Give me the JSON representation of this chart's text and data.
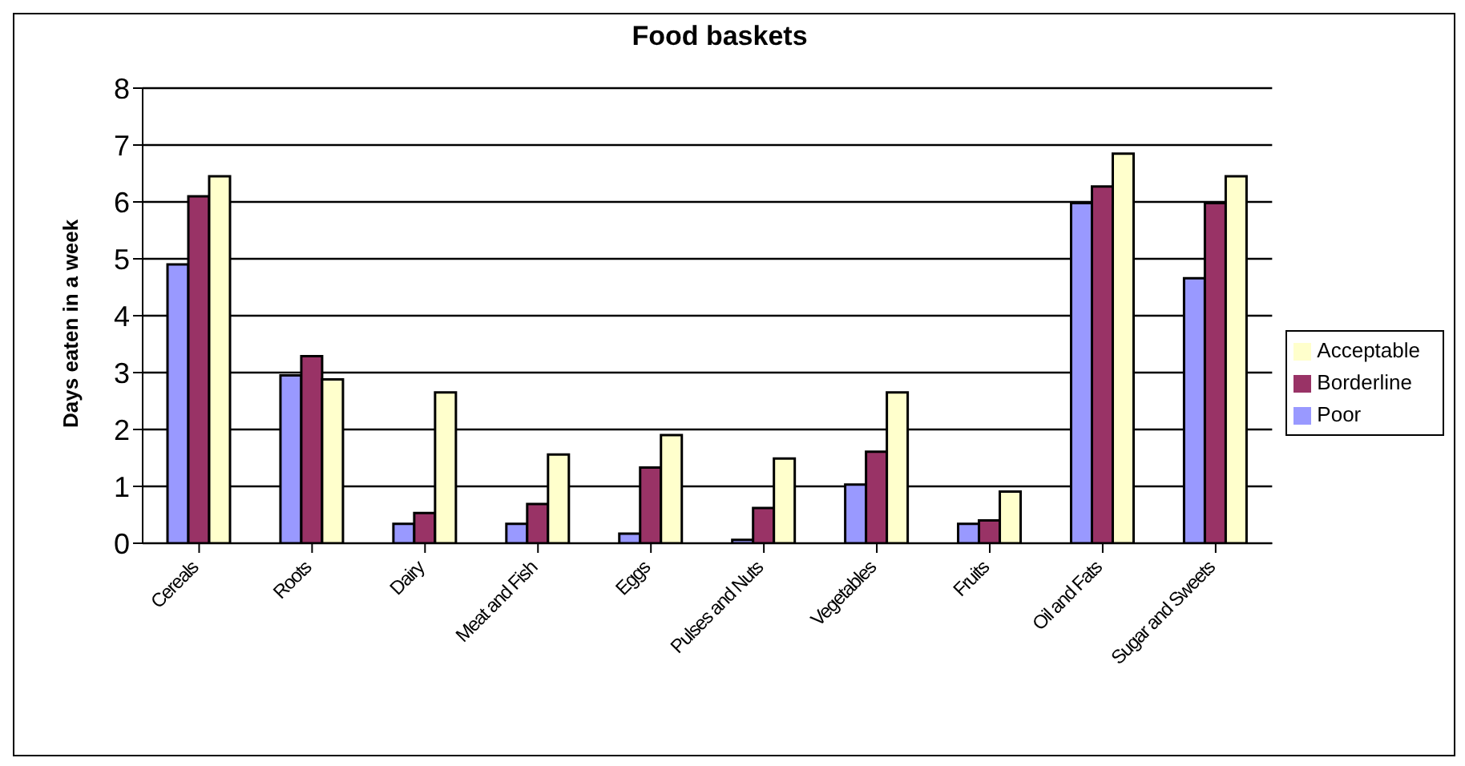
{
  "chart_data": {
    "type": "bar",
    "title": "Food baskets",
    "ylabel": "Days eaten in a week",
    "categories": [
      "Cereals",
      "Roots",
      "Dairy",
      "Meat and Fish",
      "Eggs",
      "Pulses and Nuts",
      "Vegetables",
      "Fruits",
      "Oil and Fats",
      "Sugar and Sweets"
    ],
    "series": [
      {
        "name": "Poor",
        "color": "#9999ff",
        "values": [
          4.9,
          2.95,
          0.34,
          0.34,
          0.17,
          0.06,
          1.03,
          0.34,
          5.98,
          4.66
        ]
      },
      {
        "name": "Borderline",
        "color": "#993366",
        "values": [
          6.1,
          3.29,
          0.53,
          0.69,
          1.33,
          0.62,
          1.61,
          0.4,
          6.27,
          5.98
        ]
      },
      {
        "name": "Acceptable",
        "color": "#ffffcc",
        "values": [
          6.45,
          2.88,
          2.65,
          1.56,
          1.9,
          1.49,
          2.65,
          0.91,
          6.85,
          6.45
        ]
      }
    ],
    "ylim": [
      0,
      8
    ],
    "yticks": [
      0,
      1,
      2,
      3,
      4,
      5,
      6,
      7,
      8
    ],
    "grid": "y",
    "legend": "right"
  }
}
